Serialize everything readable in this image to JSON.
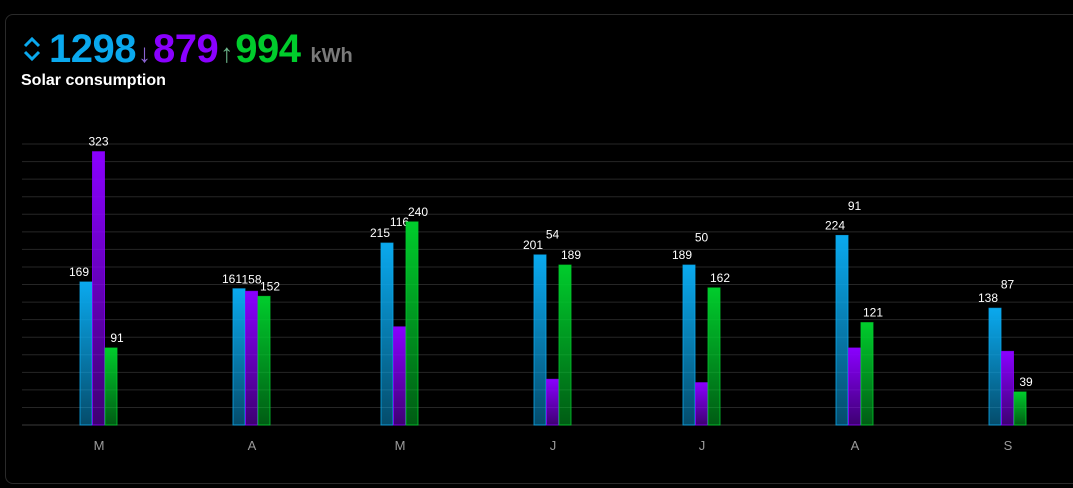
{
  "header": {
    "icon": "swap-vertical-icon",
    "total": "1298",
    "arrow_down": "↓",
    "imported": "879",
    "arrow_up": "↑",
    "exported": "994",
    "unit": "kWh",
    "title": "Solar consumption",
    "colors": {
      "total": "#0aa9ee",
      "imported": "#8a00ff",
      "exported": "#00cc2c",
      "arrow_down": "#8a63d2",
      "arrow_up": "#6bb58a"
    }
  },
  "chart_data": {
    "type": "bar",
    "categories": [
      "M",
      "A",
      "M",
      "J",
      "J",
      "A",
      "S"
    ],
    "series": [
      {
        "values": [
          169,
          161,
          215,
          201,
          189,
          224,
          138
        ],
        "color": "#0aa9ee"
      },
      {
        "values": [
          323,
          158,
          116,
          54,
          50,
          91,
          87
        ],
        "color": "#8a00ff"
      },
      {
        "values": [
          91,
          152,
          240,
          189,
          162,
          121,
          39
        ],
        "color": "#00cc2c"
      }
    ],
    "ylim": [
      0,
      340
    ],
    "grid": true,
    "legend": "none"
  }
}
